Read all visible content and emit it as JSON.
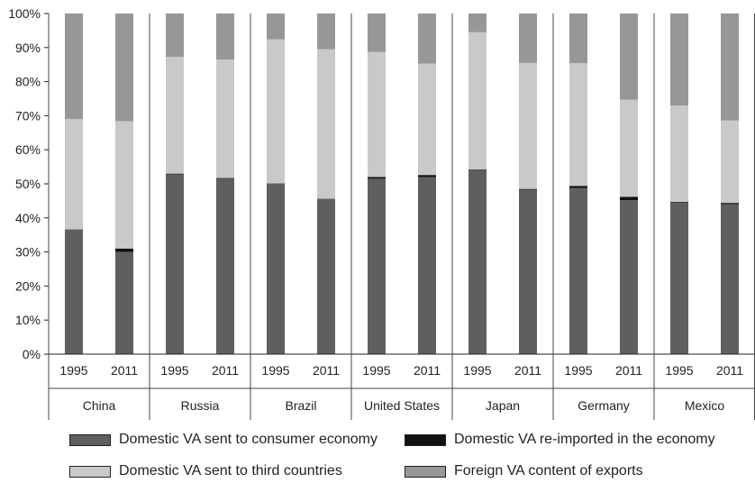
{
  "chart_data": {
    "type": "bar",
    "stacked": true,
    "orientation": "vertical",
    "percent_stacked": true,
    "groups": [
      "China",
      "Russia",
      "Brazil",
      "United States",
      "Japan",
      "Germany",
      "Mexico"
    ],
    "periods": [
      "1995",
      "2011"
    ],
    "categories": [
      "1995",
      "2011",
      "1995",
      "2011",
      "1995",
      "2011",
      "1995",
      "2011",
      "1995",
      "2011",
      "1995",
      "2011",
      "1995",
      "2011"
    ],
    "ylim": [
      0,
      100
    ],
    "yticks": [
      "0%",
      "10%",
      "20%",
      "30%",
      "40%",
      "50%",
      "60%",
      "70%",
      "80%",
      "90%",
      "100%"
    ],
    "grid": false,
    "legend_position": "bottom",
    "series": [
      {
        "name": "Domestic VA sent to consumer economy",
        "color": "#5f5f5f",
        "values": [
          36.5,
          30,
          52.8,
          51.5,
          50,
          45.5,
          51.5,
          52,
          54,
          48.3,
          48.8,
          45.2,
          44.5,
          44
        ]
      },
      {
        "name": "Domestic VA re-imported in the economy",
        "color": "#111111",
        "values": [
          0.1,
          1,
          0.2,
          0.2,
          0.1,
          0.1,
          0.5,
          0.6,
          0.2,
          0.2,
          0.6,
          1,
          0.2,
          0.4
        ]
      },
      {
        "name": "Domestic VA sent to third countries",
        "color": "#c9c9c9",
        "values": [
          32.4,
          37.4,
          34.3,
          34.8,
          42.3,
          43.9,
          36.7,
          32.7,
          40.3,
          37,
          36,
          28.5,
          28.3,
          24.2
        ]
      },
      {
        "name": "Foreign VA content of exports",
        "color": "#979797",
        "values": [
          31,
          31.6,
          12.7,
          13.5,
          7.6,
          10.5,
          11.3,
          14.7,
          5.5,
          14.5,
          14.6,
          25.3,
          27,
          31.4
        ]
      }
    ],
    "legend_order": [
      0,
      1,
      2,
      3
    ]
  }
}
